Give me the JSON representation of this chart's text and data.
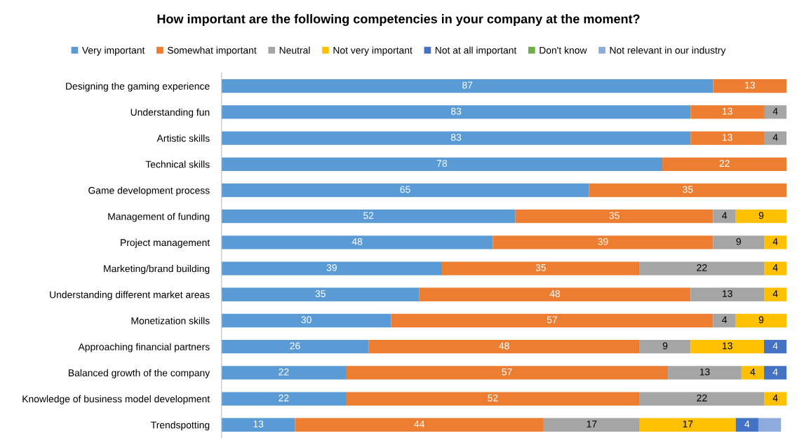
{
  "chart_data": {
    "type": "bar",
    "orientation": "horizontal",
    "stacked": true,
    "title": "How important are the following competencies in your company at the moment?",
    "categories": [
      "Designing the gaming experience",
      "Understanding fun",
      "Artistic skills",
      "Technical skills",
      "Game development process",
      "Management of funding",
      "Project management",
      "Marketing/brand building",
      "Understanding different market areas",
      "Monetization skills",
      "Approaching financial partners",
      "Balanced growth of the company",
      "Knowledge of business model development",
      "Trendspotting"
    ],
    "series": [
      {
        "name": "Very important",
        "color": "#5b9bd5",
        "values": [
          87,
          83,
          83,
          78,
          65,
          52,
          48,
          39,
          35,
          30,
          26,
          22,
          22,
          13
        ]
      },
      {
        "name": "Somewhat important",
        "color": "#ed7d31",
        "values": [
          13,
          13,
          13,
          22,
          35,
          35,
          39,
          35,
          48,
          57,
          48,
          57,
          52,
          44
        ]
      },
      {
        "name": "Neutral",
        "color": "#a5a5a5",
        "values": [
          null,
          4,
          4,
          null,
          null,
          4,
          9,
          22,
          13,
          4,
          9,
          13,
          22,
          17
        ]
      },
      {
        "name": "Not very important",
        "color": "#ffc000",
        "values": [
          null,
          null,
          null,
          null,
          null,
          9,
          4,
          4,
          4,
          9,
          13,
          4,
          4,
          17
        ]
      },
      {
        "name": "Not at all important",
        "color": "#4472c4",
        "values": [
          null,
          null,
          null,
          null,
          null,
          null,
          null,
          null,
          null,
          null,
          4,
          4,
          null,
          4
        ]
      },
      {
        "name": "Don't know",
        "color": "#70ad47",
        "values": [
          null,
          null,
          null,
          null,
          null,
          null,
          null,
          null,
          null,
          null,
          null,
          null,
          null,
          null
        ]
      },
      {
        "name": "Not relevant in our industry",
        "color": "#8faadc",
        "values": [
          null,
          null,
          null,
          null,
          null,
          null,
          null,
          null,
          null,
          null,
          null,
          null,
          null,
          4
        ],
        "value_labels": [
          null,
          null,
          null,
          null,
          null,
          null,
          null,
          null,
          null,
          null,
          null,
          null,
          null,
          null
        ]
      }
    ],
    "data_labels": true,
    "legend": "top",
    "grid": false,
    "tick_labels": "y"
  }
}
